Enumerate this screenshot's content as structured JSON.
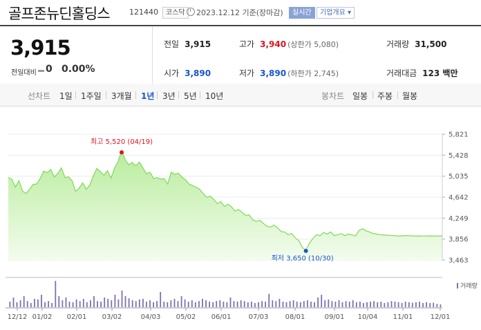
{
  "header": {
    "title": "골프존뉴딘홀딩스",
    "code": "121440",
    "market": "코스닥",
    "date": "2023.12.12",
    "date_suffix": "기준(장마감)",
    "live_label": "실시간",
    "info_label": "기업개요"
  },
  "summary": {
    "price": "3,915",
    "change_label": "전일대비",
    "change_value": "0",
    "change_pct": "0.00%",
    "prev_close_label": "전일",
    "prev_close": "3,915",
    "high_label": "고가",
    "high": "3,940",
    "upper_limit": "(상한가 5,080)",
    "volume_label": "거래량",
    "volume": "31,500",
    "open_label": "시가",
    "open": "3,890",
    "low_label": "저가",
    "low": "3,890",
    "lower_limit": "(하한가 2,745)",
    "amount_label": "거래대금",
    "amount": "123 백만"
  },
  "tabs": {
    "period_label": "선차트",
    "periods": [
      "1일",
      "1주일",
      "3개월",
      "1년",
      "3년",
      "5년",
      "10년"
    ],
    "active_period": "1년",
    "candle_label": "봉차트",
    "candles": [
      "일봉",
      "주봉",
      "월봉"
    ]
  },
  "colors": {
    "line": "#7ed957",
    "fill_top": "#b8ec9c",
    "fill_bottom": "#f3fcee",
    "max_dot": "#e0121f",
    "min_dot": "#1a55c9",
    "volume_bar": "#7e6fb0"
  },
  "chart_data": {
    "type": "area",
    "ylim": [
      3463,
      5821
    ],
    "yticks": [
      "5,821",
      "5,428",
      "5,035",
      "4,642",
      "4,249",
      "3,856",
      "3,463"
    ],
    "xticks": [
      "12/12",
      "01/02",
      "02/01",
      "03/02",
      "04/03",
      "05/02",
      "06/01",
      "07/03",
      "08/01",
      "09/01",
      "10/04",
      "11/01",
      "12/01"
    ],
    "x": [
      0,
      2,
      4,
      6,
      8,
      10,
      12,
      14,
      16,
      18,
      20,
      22,
      24,
      26,
      28,
      30,
      32,
      34,
      36,
      38,
      40,
      42,
      44,
      46,
      48,
      50,
      52,
      54,
      56,
      58,
      60,
      62,
      64,
      66,
      68,
      70,
      72,
      74,
      76,
      78,
      80,
      82,
      84,
      86,
      88,
      90,
      92,
      94,
      96,
      98,
      100,
      102,
      104,
      106,
      108,
      110,
      112,
      114,
      116,
      118,
      120,
      122,
      124,
      126,
      128,
      130,
      132,
      134,
      136,
      138,
      140,
      142,
      144,
      146,
      148,
      150,
      152,
      154,
      156,
      158,
      160,
      162,
      164,
      166,
      168,
      170,
      172,
      174,
      176,
      178,
      180,
      182,
      184,
      186,
      188,
      190,
      192,
      194,
      196,
      198,
      200,
      202,
      204,
      206,
      208,
      210,
      212,
      214,
      216,
      218,
      220,
      222,
      224,
      226,
      228,
      230,
      232,
      234,
      236,
      238,
      240,
      242,
      244,
      245
    ],
    "values": [
      5010,
      4980,
      4830,
      4950,
      4760,
      4710,
      4790,
      4880,
      4890,
      4990,
      5130,
      5100,
      5160,
      5020,
      5090,
      5190,
      5010,
      5020,
      4950,
      4750,
      4810,
      4910,
      4790,
      4870,
      5040,
      5180,
      5120,
      5050,
      5140,
      5000,
      5190,
      5310,
      5520,
      5340,
      5250,
      5290,
      5230,
      5300,
      5190,
      5080,
      5110,
      4990,
      5010,
      4980,
      4990,
      4890,
      5110,
      5070,
      5090,
      5020,
      4970,
      4890,
      4860,
      4830,
      4790,
      4710,
      4640,
      4660,
      4600,
      4520,
      4560,
      4470,
      4510,
      4460,
      4380,
      4410,
      4360,
      4300,
      4310,
      4220,
      4190,
      4210,
      4150,
      4100,
      4080,
      4120,
      4070,
      4000,
      3990,
      3940,
      3960,
      3880,
      3830,
      3700,
      3650,
      3780,
      3870,
      3940,
      3920,
      3980,
      3950,
      3990,
      3920,
      3940,
      3960,
      3920,
      3950,
      3935,
      3915,
      4020,
      4050,
      4010,
      3990,
      3960,
      3950,
      3940,
      3935,
      3930,
      3925,
      3920,
      3915,
      3918,
      3922,
      3920,
      3917,
      3915,
      3916,
      3914,
      3915,
      3916,
      3915,
      3915,
      3915,
      3915
    ],
    "max_label": "최고 5,520 (04/19)",
    "min_label": "최저 3,650 (10/30)",
    "volume_label": "거래량",
    "volume": [
      20,
      35,
      18,
      25,
      40,
      22,
      15,
      30,
      28,
      45,
      18,
      22,
      15,
      95,
      40,
      25,
      35,
      20,
      18,
      28,
      22,
      30,
      18,
      25,
      40,
      22,
      20,
      35,
      30,
      25,
      45,
      28,
      60,
      40,
      32,
      25,
      22,
      28,
      30,
      20,
      25,
      18,
      22,
      55,
      20,
      18,
      25,
      30,
      22,
      40,
      28,
      20,
      25,
      18,
      22,
      30,
      25,
      20,
      18,
      22,
      25,
      20,
      18,
      35,
      22,
      20,
      25,
      22,
      18,
      20,
      15,
      18,
      22,
      20,
      48,
      25,
      22,
      30,
      20,
      18,
      22,
      25,
      20,
      18,
      22,
      25,
      20,
      18,
      35,
      45,
      25,
      28,
      22,
      20,
      25,
      18,
      22,
      20,
      25,
      18,
      20,
      15,
      18,
      20,
      22,
      18,
      20,
      15,
      18,
      22,
      20,
      18,
      15,
      20,
      18,
      16,
      18,
      20,
      15,
      18,
      15,
      16,
      12,
      10
    ]
  }
}
